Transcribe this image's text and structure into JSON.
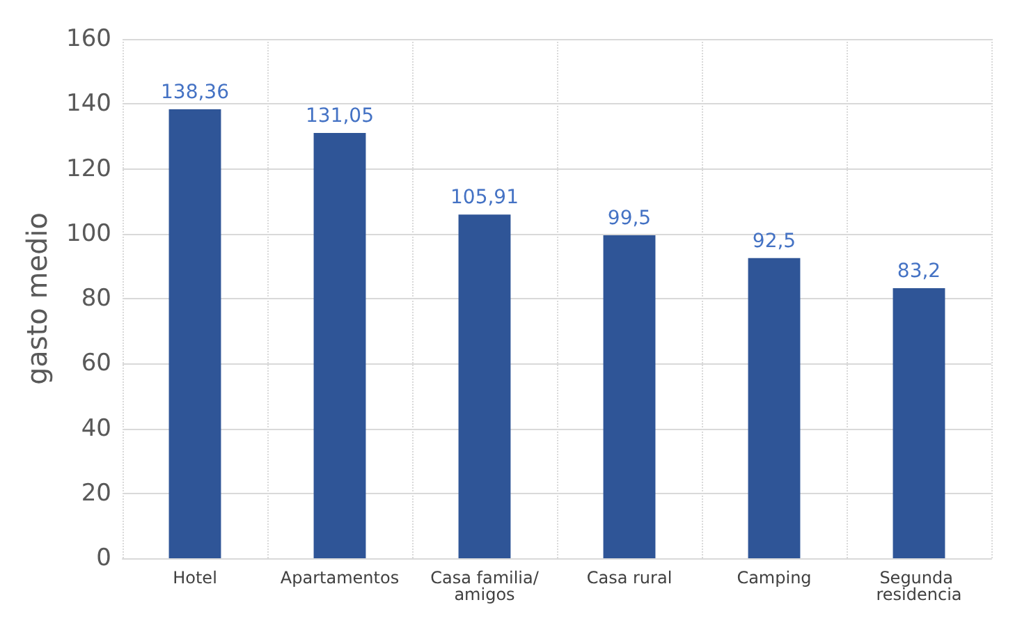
{
  "chart_data": {
    "type": "bar",
    "ylabel": "gasto medio",
    "categories": [
      "Hotel",
      "Apartamentos",
      "Casa familia/amigos",
      "Casa rural",
      "Camping",
      "Segunda residencia"
    ],
    "values": [
      138.36,
      131.05,
      105.91,
      99.5,
      92.5,
      83.2
    ],
    "value_labels": [
      "138,36",
      "131,05",
      "105,91",
      "99,5",
      "92,5",
      "83,2"
    ],
    "color": "#2f5597",
    "ylim": [
      0,
      160
    ],
    "yticks": [
      0,
      20,
      40,
      60,
      80,
      100,
      120,
      140,
      160
    ],
    "grid": true
  }
}
